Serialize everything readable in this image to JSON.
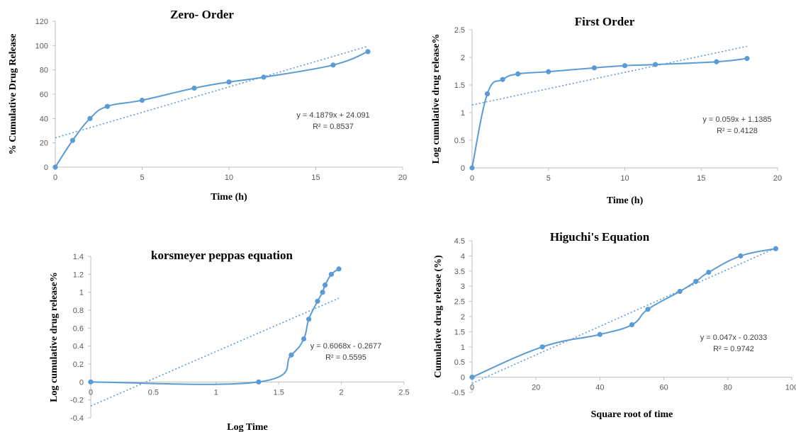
{
  "colors": {
    "series": "#5b9bd5",
    "axis": "#bfbfbf",
    "tick": "#595959"
  },
  "chart_data": [
    {
      "type": "line",
      "title": "Zero- Order",
      "xlabel": "Time (h)",
      "ylabel": "% Cumulative  Drug Release",
      "xlim": [
        0,
        20
      ],
      "ylim": [
        0,
        120
      ],
      "xticks": [
        0,
        5,
        10,
        15,
        20
      ],
      "yticks": [
        0,
        20,
        40,
        60,
        80,
        100,
        120
      ],
      "grid": false,
      "series": [
        {
          "x": [
            0,
            1,
            2,
            3,
            5,
            8,
            10,
            12,
            16,
            18
          ],
          "y": [
            0,
            22,
            40,
            50,
            55,
            65,
            70,
            74,
            84,
            95
          ]
        }
      ],
      "trendline": {
        "slope": 4.1879,
        "intercept": 24.091,
        "x_range": [
          0,
          18
        ]
      },
      "equation": [
        "y = 4.1879x + 24.091",
        "R² = 0.8537"
      ]
    },
    {
      "type": "line",
      "title": "First Order",
      "xlabel": "Time (h)",
      "ylabel": "Log cumulative  drug  release%",
      "xlim": [
        0,
        20
      ],
      "ylim": [
        0,
        2.5
      ],
      "xticks": [
        0,
        5,
        10,
        15,
        20
      ],
      "yticks": [
        0,
        0.5,
        1,
        1.5,
        2,
        2.5
      ],
      "grid": false,
      "series": [
        {
          "x": [
            0,
            1,
            2,
            3,
            5,
            8,
            10,
            12,
            16,
            18
          ],
          "y": [
            0,
            1.34,
            1.6,
            1.7,
            1.74,
            1.81,
            1.85,
            1.87,
            1.92,
            1.98
          ]
        }
      ],
      "trendline": {
        "slope": 0.059,
        "intercept": 1.1385,
        "x_range": [
          0,
          18
        ]
      },
      "equation": [
        "y = 0.059x + 1.1385",
        "R² = 0.4128"
      ]
    },
    {
      "type": "line",
      "title": "korsmeyer peppas equation",
      "xlabel": "Log Time",
      "ylabel": "Log cumulative  drug  release%",
      "xlim": [
        0,
        2.5
      ],
      "ylim": [
        -0.4,
        1.4
      ],
      "xticks": [
        0,
        0.5,
        1,
        1.5,
        2,
        2.5
      ],
      "yticks": [
        -0.4,
        -0.2,
        0,
        0.2,
        0.4,
        0.6,
        0.8,
        1,
        1.2,
        1.4
      ],
      "grid": false,
      "series": [
        {
          "x": [
            0,
            1.34,
            1.6,
            1.7,
            1.74,
            1.81,
            1.85,
            1.87,
            1.92,
            1.98
          ],
          "y": [
            0,
            0,
            0.3,
            0.48,
            0.7,
            0.9,
            1.0,
            1.08,
            1.2,
            1.26
          ]
        }
      ],
      "trendline": {
        "slope": 0.6068,
        "intercept": -0.2677,
        "x_range": [
          0,
          1.98
        ]
      },
      "equation": [
        "y = 0.6068x - 0.2677",
        "R² = 0.5595"
      ]
    },
    {
      "type": "line",
      "title": "Higuchi's Equation",
      "xlabel": "Square  root of time",
      "ylabel": "Cumulative  drug  release (%)",
      "xlim": [
        0,
        100
      ],
      "ylim": [
        -0.5,
        4.5
      ],
      "xticks": [
        0,
        20,
        40,
        60,
        80,
        100
      ],
      "yticks": [
        -0.5,
        0,
        0.5,
        1,
        1.5,
        2,
        2.5,
        3,
        3.5,
        4,
        4.5
      ],
      "grid": false,
      "series": [
        {
          "x": [
            0,
            22,
            40,
            50,
            55,
            65,
            70,
            74,
            84,
            95
          ],
          "y": [
            0,
            1.0,
            1.41,
            1.73,
            2.24,
            2.83,
            3.16,
            3.46,
            4.0,
            4.24
          ]
        }
      ],
      "trendline": {
        "slope": 0.047,
        "intercept": -0.2033,
        "x_range": [
          0,
          95
        ]
      },
      "equation": [
        "y = 0.047x - 0.2033",
        "R² = 0.9742"
      ]
    }
  ]
}
